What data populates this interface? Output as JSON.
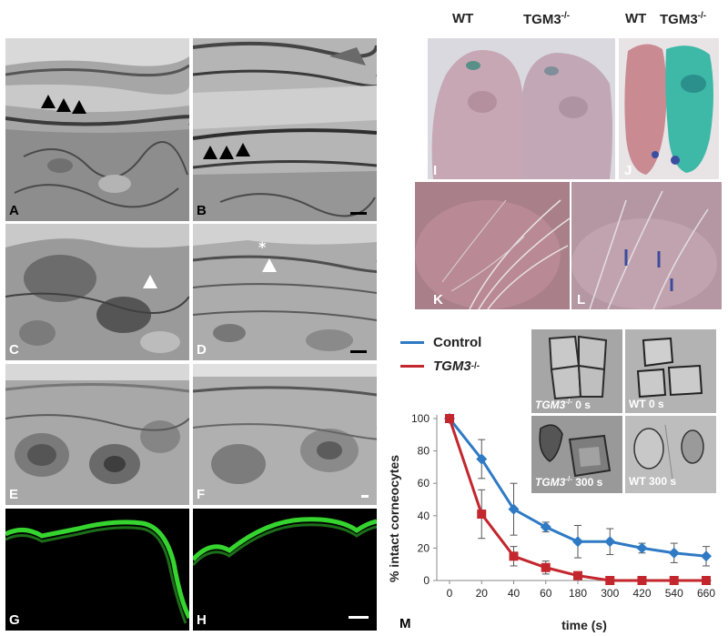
{
  "figure": {
    "panels": {
      "A": "A",
      "B": "B",
      "C": "C",
      "D": "D",
      "E": "E",
      "F": "F",
      "G": "G",
      "H": "H",
      "I": "I",
      "J": "J",
      "K": "K",
      "L": "L",
      "M": "M"
    },
    "photo_labels": {
      "wt_1": "WT",
      "tgm3_1_base": "TGM3",
      "tgm3_1_sup": "-/-",
      "wt_2": "WT",
      "tgm3_2_base": "TGM3",
      "tgm3_2_sup": "-/-"
    },
    "insets": {
      "tgm3_0s_base": "TGM3",
      "tgm3_0s_sup": "-/-",
      "tgm3_0s_time": " 0 s",
      "wt_0s": "WT 0 s",
      "tgm3_300s_base": "TGM3",
      "tgm3_300s_sup": "-/-",
      "tgm3_300s_time": " 300 s",
      "wt_300s": "WT 300 s"
    },
    "colors": {
      "control": "#2e7ac4",
      "tgm3": "#c3262d",
      "fluorescence": "#35d42f"
    }
  },
  "chart_data": {
    "type": "line",
    "xlabel": "time (s)",
    "ylabel": "% intact corneocytes",
    "categories": [
      "0",
      "20",
      "40",
      "60",
      "180",
      "300",
      "420",
      "540",
      "660"
    ],
    "ylim": [
      0,
      100
    ],
    "yticks": [
      "0",
      "20",
      "40",
      "60",
      "80",
      "100"
    ],
    "legend_position": "top-left",
    "series": [
      {
        "name": "Control",
        "marker": "diamond",
        "values": [
          100,
          75,
          44,
          33,
          24,
          24,
          20,
          17,
          15
        ],
        "errors": [
          0,
          12,
          16,
          3,
          10,
          8,
          3,
          6,
          6
        ]
      },
      {
        "name_base": "TGM3",
        "name_sup": "-/-",
        "marker": "square",
        "values": [
          100,
          41,
          15,
          8,
          3,
          0,
          0,
          0,
          0
        ],
        "errors": [
          0,
          15,
          6,
          4,
          0,
          0,
          0,
          0,
          0
        ]
      }
    ]
  }
}
